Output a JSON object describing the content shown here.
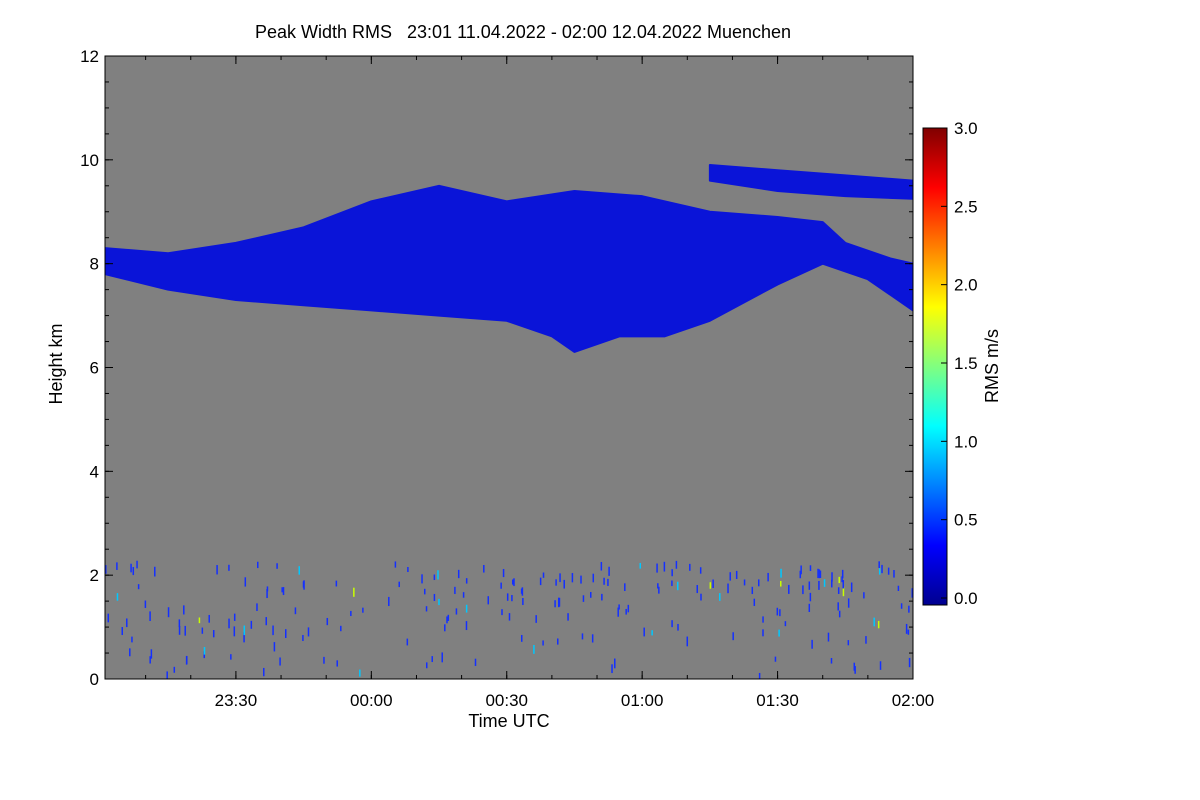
{
  "chart_data": {
    "type": "heatmap",
    "title": "Peak Width RMS   23:01 11.04.2022 - 02:00 12.04.2022 Muenchen",
    "xlabel": "Time UTC",
    "ylabel": "Height km",
    "colorbar_label": "RMS m/s",
    "x_start": "23:01",
    "x_end": "02:00",
    "x_ticks": [
      "23:30",
      "00:00",
      "00:30",
      "01:00",
      "01:30",
      "02:00"
    ],
    "ylim": [
      0,
      12
    ],
    "y_ticks": [
      "0",
      "2",
      "4",
      "6",
      "8",
      "10",
      "12"
    ],
    "colorbar_range": [
      0.0,
      3.0
    ],
    "colorbar_ticks": [
      "0.0",
      "0.5",
      "1.0",
      "1.5",
      "2.0",
      "2.5",
      "3.0"
    ],
    "background_color": "#808080",
    "colormap": [
      "#00008f",
      "#0000ff",
      "#0080ff",
      "#00ffff",
      "#80ff80",
      "#ffff00",
      "#ff8000",
      "#ff0000",
      "#800000"
    ],
    "cloud_color": "#0a14d8",
    "cloud_layer": {
      "description_free": true,
      "top_km": [
        {
          "t": "23:01",
          "h": 8.3
        },
        {
          "t": "23:15",
          "h": 8.2
        },
        {
          "t": "23:30",
          "h": 8.4
        },
        {
          "t": "23:45",
          "h": 8.7
        },
        {
          "t": "00:00",
          "h": 9.2
        },
        {
          "t": "00:15",
          "h": 9.5
        },
        {
          "t": "00:30",
          "h": 9.2
        },
        {
          "t": "00:45",
          "h": 9.4
        },
        {
          "t": "01:00",
          "h": 9.3
        },
        {
          "t": "01:15",
          "h": 9.0
        },
        {
          "t": "01:30",
          "h": 8.9
        },
        {
          "t": "01:40",
          "h": 8.8
        },
        {
          "t": "01:45",
          "h": 8.4
        },
        {
          "t": "01:55",
          "h": 8.1
        },
        {
          "t": "02:00",
          "h": 8.0
        }
      ],
      "bottom_km": [
        {
          "t": "23:01",
          "h": 7.8
        },
        {
          "t": "23:15",
          "h": 7.5
        },
        {
          "t": "23:30",
          "h": 7.3
        },
        {
          "t": "23:45",
          "h": 7.2
        },
        {
          "t": "00:00",
          "h": 7.1
        },
        {
          "t": "00:15",
          "h": 7.0
        },
        {
          "t": "00:30",
          "h": 6.9
        },
        {
          "t": "00:40",
          "h": 6.6
        },
        {
          "t": "00:45",
          "h": 6.3
        },
        {
          "t": "00:55",
          "h": 6.6
        },
        {
          "t": "01:05",
          "h": 6.6
        },
        {
          "t": "01:15",
          "h": 6.9
        },
        {
          "t": "01:30",
          "h": 7.6
        },
        {
          "t": "01:40",
          "h": 8.0
        },
        {
          "t": "01:50",
          "h": 7.7
        },
        {
          "t": "02:00",
          "h": 7.1
        }
      ]
    },
    "upper_layer": {
      "top_km": [
        {
          "t": "01:15",
          "h": 9.9
        },
        {
          "t": "01:30",
          "h": 9.8
        },
        {
          "t": "01:45",
          "h": 9.7
        },
        {
          "t": "02:00",
          "h": 9.6
        }
      ],
      "bottom_km": [
        {
          "t": "01:15",
          "h": 9.6
        },
        {
          "t": "01:30",
          "h": 9.4
        },
        {
          "t": "01:45",
          "h": 9.3
        },
        {
          "t": "02:00",
          "h": 9.25
        }
      ]
    }
  }
}
